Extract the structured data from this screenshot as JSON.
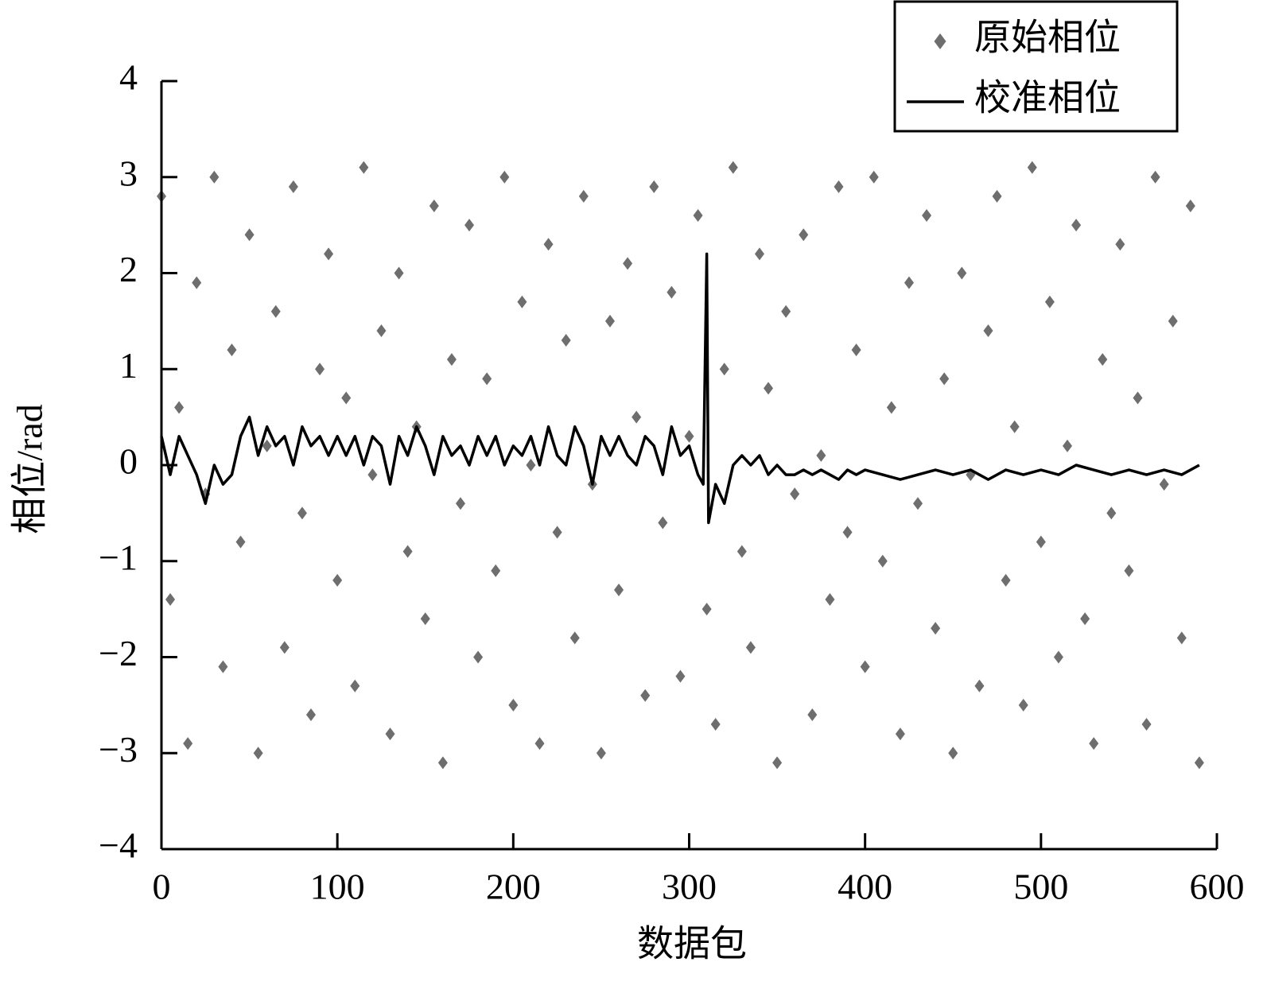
{
  "chart_data": {
    "type": "scatter",
    "xlabel": "数据包",
    "ylabel": "相位/rad",
    "xlim": [
      0,
      600
    ],
    "xticks": [
      0,
      100,
      200,
      300,
      400,
      500,
      600
    ],
    "ylim": [
      -4,
      4
    ],
    "yticks": [
      {
        "value": -4,
        "label": "−4"
      },
      {
        "value": -3,
        "label": "−3"
      },
      {
        "value": -2,
        "label": "−2"
      },
      {
        "value": -1,
        "label": "−1"
      },
      0,
      1,
      2,
      3,
      4
    ],
    "grid": false,
    "legend": "top-right",
    "series": [
      {
        "name": "原始相位",
        "type": "scatter",
        "color": "#6e6e6e",
        "x": [
          0,
          5,
          10,
          15,
          20,
          25,
          30,
          35,
          40,
          45,
          50,
          55,
          60,
          65,
          70,
          75,
          80,
          85,
          90,
          95,
          100,
          105,
          110,
          115,
          120,
          125,
          130,
          135,
          140,
          145,
          150,
          155,
          160,
          165,
          170,
          175,
          180,
          185,
          190,
          195,
          200,
          205,
          210,
          215,
          220,
          225,
          230,
          235,
          240,
          245,
          250,
          255,
          260,
          265,
          270,
          275,
          280,
          285,
          290,
          295,
          300,
          305,
          310,
          315,
          320,
          325,
          330,
          335,
          340,
          345,
          350,
          355,
          360,
          365,
          370,
          375,
          380,
          385,
          390,
          395,
          400,
          405,
          410,
          415,
          420,
          425,
          430,
          435,
          440,
          445,
          450,
          455,
          460,
          465,
          470,
          475,
          480,
          485,
          490,
          495,
          500,
          505,
          510,
          515,
          520,
          525,
          530,
          535,
          540,
          545,
          550,
          555,
          560,
          565,
          570,
          575,
          580,
          585,
          590
        ],
        "values": [
          2.8,
          -1.4,
          0.6,
          -2.9,
          1.9,
          -0.3,
          3.0,
          -2.1,
          1.2,
          -0.8,
          2.4,
          -3.0,
          0.2,
          1.6,
          -1.9,
          2.9,
          -0.5,
          -2.6,
          1.0,
          2.2,
          -1.2,
          0.7,
          -2.3,
          3.1,
          -0.1,
          1.4,
          -2.8,
          2.0,
          -0.9,
          0.4,
          -1.6,
          2.7,
          -3.1,
          1.1,
          -0.4,
          2.5,
          -2.0,
          0.9,
          -1.1,
          3.0,
          -2.5,
          1.7,
          0.0,
          -2.9,
          2.3,
          -0.7,
          1.3,
          -1.8,
          2.8,
          -0.2,
          -3.0,
          1.5,
          -1.3,
          2.1,
          0.5,
          -2.4,
          2.9,
          -0.6,
          1.8,
          -2.2,
          0.3,
          2.6,
          -1.5,
          -2.7,
          1.0,
          3.1,
          -0.9,
          -1.9,
          2.2,
          0.8,
          -3.1,
          1.6,
          -0.3,
          2.4,
          -2.6,
          0.1,
          -1.4,
          2.9,
          -0.7,
          1.2,
          -2.1,
          3.0,
          -1.0,
          0.6,
          -2.8,
          1.9,
          -0.4,
          2.6,
          -1.7,
          0.9,
          -3.0,
          2.0,
          -0.1,
          -2.3,
          1.4,
          2.8,
          -1.2,
          0.4,
          -2.5,
          3.1,
          -0.8,
          1.7,
          -2.0,
          0.2,
          2.5,
          -1.6,
          -2.9,
          1.1,
          -0.5,
          2.3,
          -1.1,
          0.7,
          -2.7,
          3.0,
          -0.2,
          1.5,
          -1.8,
          2.7,
          -3.1
        ]
      },
      {
        "name": "校准相位",
        "type": "line",
        "color": "#000000",
        "x": [
          0,
          5,
          10,
          15,
          20,
          25,
          30,
          35,
          40,
          45,
          50,
          55,
          60,
          65,
          70,
          75,
          80,
          85,
          90,
          95,
          100,
          105,
          110,
          115,
          120,
          125,
          130,
          135,
          140,
          145,
          150,
          155,
          160,
          165,
          170,
          175,
          180,
          185,
          190,
          195,
          200,
          205,
          210,
          215,
          220,
          225,
          230,
          235,
          240,
          245,
          250,
          255,
          260,
          265,
          270,
          275,
          280,
          285,
          290,
          295,
          300,
          305,
          308,
          310,
          311,
          315,
          320,
          325,
          330,
          335,
          340,
          345,
          350,
          355,
          360,
          365,
          370,
          375,
          380,
          385,
          390,
          395,
          400,
          410,
          420,
          430,
          440,
          450,
          460,
          470,
          480,
          490,
          500,
          510,
          520,
          530,
          540,
          550,
          560,
          570,
          580,
          590
        ],
        "values": [
          0.3,
          -0.1,
          0.3,
          0.1,
          -0.1,
          -0.4,
          0.0,
          -0.2,
          -0.1,
          0.3,
          0.5,
          0.1,
          0.4,
          0.2,
          0.3,
          0.0,
          0.4,
          0.2,
          0.3,
          0.1,
          0.3,
          0.1,
          0.3,
          0.0,
          0.3,
          0.2,
          -0.2,
          0.3,
          0.1,
          0.4,
          0.2,
          -0.1,
          0.3,
          0.1,
          0.2,
          0.0,
          0.3,
          0.1,
          0.3,
          0.0,
          0.2,
          0.1,
          0.3,
          0.0,
          0.4,
          0.1,
          0.0,
          0.4,
          0.2,
          -0.2,
          0.3,
          0.1,
          0.3,
          0.1,
          0.0,
          0.3,
          0.2,
          -0.1,
          0.4,
          0.1,
          0.2,
          -0.1,
          -0.2,
          2.2,
          -0.6,
          -0.2,
          -0.4,
          0.0,
          0.1,
          0.0,
          0.1,
          -0.1,
          0.0,
          -0.1,
          -0.1,
          -0.05,
          -0.1,
          -0.05,
          -0.1,
          -0.15,
          -0.05,
          -0.1,
          -0.05,
          -0.1,
          -0.15,
          -0.1,
          -0.05,
          -0.1,
          -0.05,
          -0.15,
          -0.05,
          -0.1,
          -0.05,
          -0.1,
          0.0,
          -0.05,
          -0.1,
          -0.05,
          -0.1,
          -0.05,
          -0.1,
          0.0
        ]
      }
    ]
  }
}
